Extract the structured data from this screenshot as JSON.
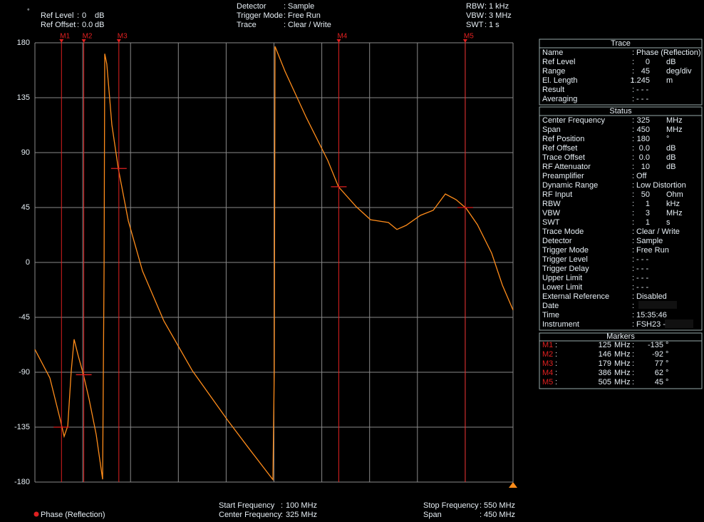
{
  "header": {
    "symbol": "°",
    "sep": ":",
    "left": [
      [
        "Ref Level",
        "0",
        "dB"
      ],
      [
        "Ref Offset",
        "0.0",
        "dB"
      ]
    ],
    "middle": [
      [
        "Detector",
        "Sample"
      ],
      [
        "Trigger Mode",
        "Free Run"
      ],
      [
        "Trace",
        "Clear / Write"
      ]
    ],
    "right": [
      [
        "RBW",
        "1 kHz"
      ],
      [
        "VBW",
        "3 MHz"
      ],
      [
        "SWT",
        "1 s"
      ]
    ]
  },
  "chart_data": {
    "type": "line",
    "grid": true,
    "xlim": [
      100,
      550
    ],
    "xticks": [
      100,
      145,
      190,
      235,
      280,
      325,
      370,
      415,
      460,
      505,
      550
    ],
    "ylim": [
      -180,
      180
    ],
    "yticks": [
      180,
      135,
      90,
      45,
      0,
      -45,
      -90,
      -135,
      -180
    ],
    "x": [
      100,
      114.1,
      124.1,
      127.5,
      130.9,
      134.2,
      136.9,
      140.9,
      145.6,
      151,
      157.7,
      163.7,
      165.1,
      165.7,
      167.7,
      172.4,
      178.5,
      187.9,
      201.3,
      221.4,
      248.2,
      281.7,
      301.9,
      324,
      325.3,
      326,
      335.4,
      355.5,
      375.6,
      385.7,
      402.5,
      415.9,
      432.7,
      440.7,
      449.4,
      462.8,
      474.9,
      486.3,
      496.4,
      505.8,
      516.5,
      529.9,
      540,
      550
    ],
    "series": [
      {
        "name": "Phase (Reflection)",
        "color": "#ff8c1a",
        "values": [
          -71.3,
          -94.7,
          -129.7,
          -142.6,
          -134,
          -88.8,
          -63,
          -77,
          -91.7,
          -112,
          -141,
          -177.7,
          -1.2,
          171,
          162.5,
          112.8,
          76.6,
          34,
          -7,
          -48,
          -88.8,
          -129.7,
          -153,
          -178,
          -88.8,
          177,
          156.6,
          118.6,
          83.6,
          62,
          45.6,
          35,
          32.7,
          27,
          30.4,
          38.6,
          42.7,
          56.1,
          51.4,
          44.4,
          31,
          7.6,
          -18.7,
          -39
        ]
      }
    ],
    "marker_color": "#e02020",
    "markers": [
      {
        "name": "M1",
        "x": 125,
        "value": -135
      },
      {
        "name": "M2",
        "x": 146,
        "value": -92
      },
      {
        "name": "M3",
        "x": 179,
        "value": 77
      },
      {
        "name": "M4",
        "x": 386,
        "value": 62
      },
      {
        "name": "M5",
        "x": 505,
        "value": 45
      }
    ]
  },
  "panel": {
    "sep": ":",
    "freq_unit": "MHz",
    "value_unit": "°",
    "markers_title": "Markers",
    "sections": [
      {
        "title": "Trace",
        "rows": [
          [
            "Name",
            "Phase (Reflection)"
          ],
          [
            "Ref Level",
            "0",
            "dB"
          ],
          [
            "Range",
            "45",
            "deg/div"
          ],
          [
            "El. Length",
            "1.245",
            "m"
          ],
          [
            "Result",
            "- - -"
          ],
          [
            "Averaging",
            "- - -"
          ]
        ]
      },
      {
        "title": "Status",
        "rows": [
          [
            "Center Frequency",
            "325",
            "MHz"
          ],
          [
            "Span",
            "450",
            "MHz"
          ],
          [
            "Ref Position",
            "180",
            "°"
          ],
          [
            "Ref Offset",
            "0.0",
            "dB"
          ],
          [
            "Trace Offset",
            "0.0",
            "dB"
          ],
          [
            "RF Attenuator",
            "10",
            "dB"
          ],
          [
            "Preamplifier",
            "Off"
          ],
          [
            "Dynamic Range",
            "Low Distortion"
          ],
          [
            "RF Input",
            "50",
            "Ohm"
          ],
          [
            "RBW",
            "1",
            "kHz"
          ],
          [
            "VBW",
            "3",
            "MHz"
          ],
          [
            "SWT",
            "1",
            "s"
          ],
          [
            "Trace Mode",
            "Clear / Write"
          ],
          [
            "Detector",
            "Sample"
          ],
          [
            "Trigger Mode",
            "Free Run"
          ],
          [
            "Trigger Level",
            "- - -"
          ],
          [
            "Trigger Delay",
            "- - -"
          ],
          [
            "Upper Limit",
            "- - -"
          ],
          [
            "Lower Limit",
            "- - -"
          ],
          [
            "External Reference",
            "Disabled"
          ],
          [
            "Date"
          ],
          [
            "Time",
            "15:35:46"
          ],
          [
            "Instrument",
            "FSH23 -"
          ]
        ]
      }
    ]
  },
  "footer": {
    "sep": ":",
    "left": [
      [
        "Start Frequency",
        "100 MHz"
      ],
      [
        "Center Frequency",
        "325 MHz"
      ]
    ],
    "right": [
      [
        "Stop Frequency",
        "550 MHz"
      ],
      [
        "Span",
        "450 MHz"
      ]
    ]
  }
}
